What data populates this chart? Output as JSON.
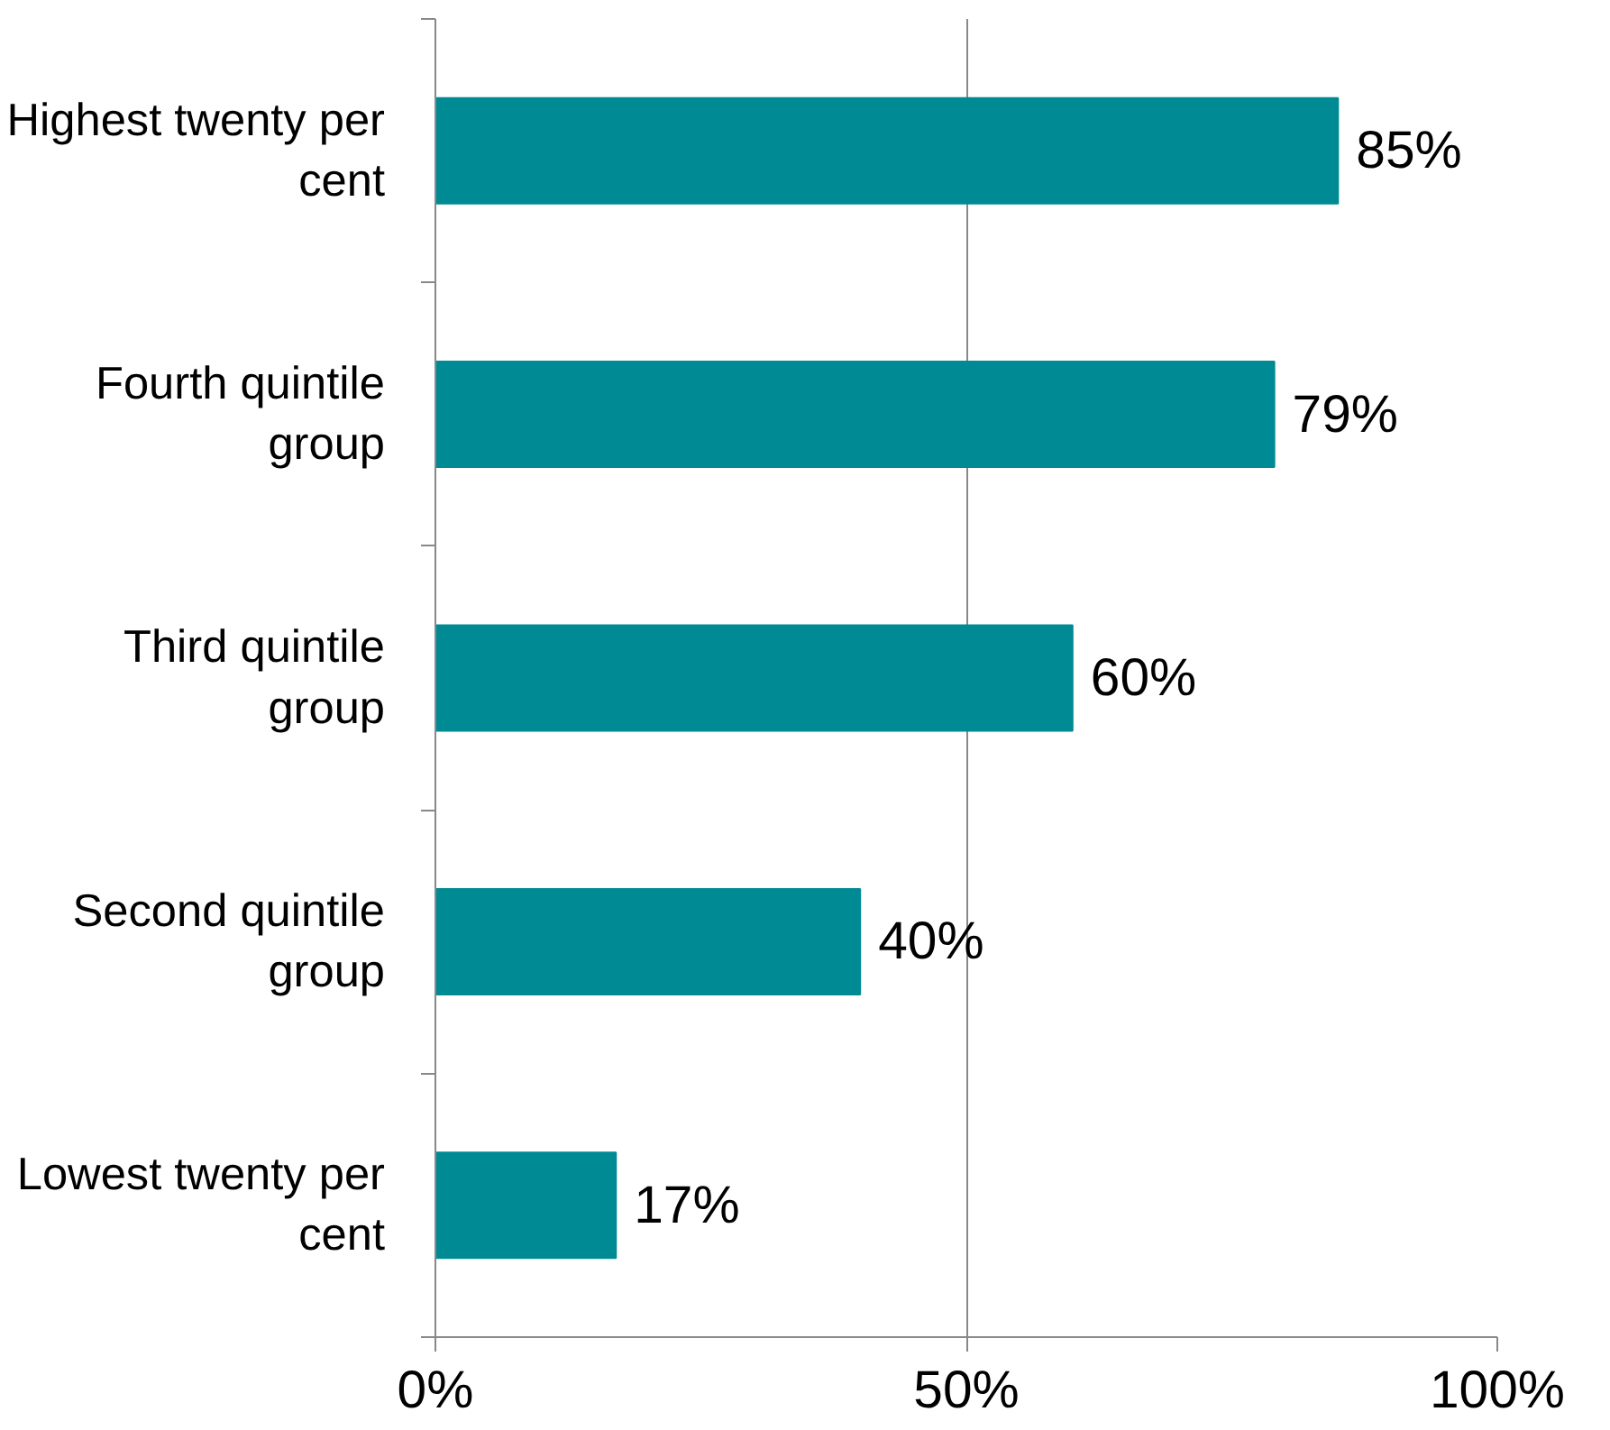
{
  "chart_data": {
    "type": "bar",
    "orientation": "horizontal",
    "categories": [
      "Highest twenty per cent",
      "Fourth quintile group",
      "Third quintile group",
      "Second quintile group",
      "Lowest twenty per cent"
    ],
    "values": [
      85,
      79,
      60,
      40,
      17
    ],
    "value_labels": [
      "85%",
      "79%",
      "60%",
      "40%",
      "17%"
    ],
    "color": "#008b94",
    "xlim": [
      0,
      100
    ],
    "xticks": [
      {
        "value": 0,
        "label": "0%"
      },
      {
        "value": 50,
        "label": "50%"
      },
      {
        "value": 100,
        "label": "100%"
      }
    ],
    "grid": "x"
  }
}
